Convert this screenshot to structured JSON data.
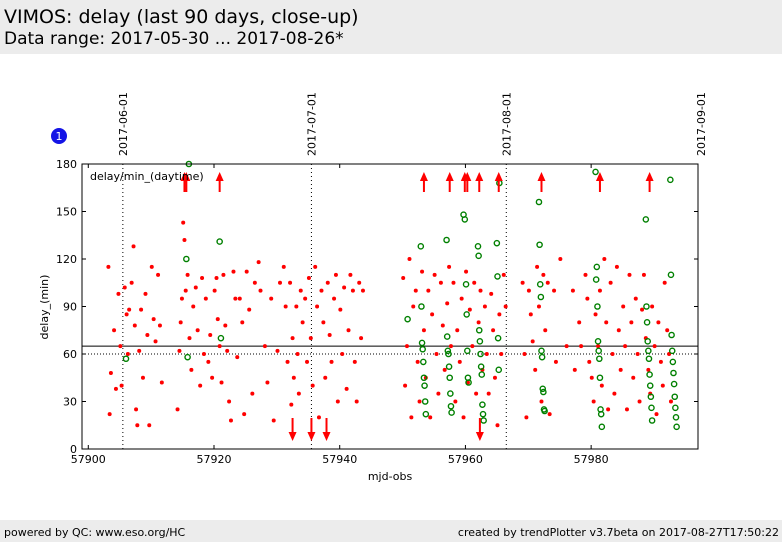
{
  "header": {
    "title": "VIMOS: delay (last 90 days, close-up)",
    "subtitle": "Data range: 2017-05-30 ... 2017-08-26*"
  },
  "footer": {
    "left": "powered by QC: www.eso.org/HC",
    "right": "created by trendPlotter v3.7beta on 2017-08-27T17:50:22"
  },
  "badge": {
    "label": "1",
    "color": "#1414e6"
  },
  "chart_data": {
    "type": "scatter",
    "xlabel": "mjd-obs",
    "ylabel": "delay_(min)",
    "annotation": "delay/min_(daytime)",
    "xlim": [
      57899,
      57997
    ],
    "ylim": [
      0,
      180
    ],
    "xticks": [
      57900,
      57920,
      57940,
      57960,
      57980
    ],
    "yticks": [
      0,
      30,
      60,
      90,
      120,
      150,
      180
    ],
    "hlines": [
      {
        "y": 60,
        "style": "dotted",
        "color": "#000000"
      },
      {
        "y": 65,
        "style": "solid",
        "color": "#000000"
      }
    ],
    "date_markers": [
      {
        "x": 57905.5,
        "label": "2017-06-01"
      },
      {
        "x": 57935.5,
        "label": "2017-07-01"
      },
      {
        "x": 57966.5,
        "label": "2017-08-01"
      },
      {
        "x": 57997.5,
        "label": "2017-09-01"
      }
    ],
    "colors": {
      "red": "#ff0000",
      "green": "#008000",
      "arrow": "#ff0000"
    },
    "red_points": [
      [
        57903.2,
        115
      ],
      [
        57903.4,
        22
      ],
      [
        57903.6,
        48
      ],
      [
        57904.1,
        75
      ],
      [
        57904.4,
        38
      ],
      [
        57904.8,
        98
      ],
      [
        57905.1,
        65
      ],
      [
        57905.3,
        40
      ],
      [
        57905.8,
        102
      ],
      [
        57906.1,
        85
      ],
      [
        57906.3,
        60
      ],
      [
        57906.5,
        88
      ],
      [
        57906.9,
        105
      ],
      [
        57907.2,
        128
      ],
      [
        57907.4,
        78
      ],
      [
        57907.6,
        25
      ],
      [
        57907.8,
        15
      ],
      [
        57908.1,
        62
      ],
      [
        57908.4,
        88
      ],
      [
        57908.7,
        45
      ],
      [
        57909.1,
        98
      ],
      [
        57909.4,
        72
      ],
      [
        57909.7,
        15
      ],
      [
        57910.1,
        115
      ],
      [
        57910.4,
        82
      ],
      [
        57910.7,
        68
      ],
      [
        57911.1,
        110
      ],
      [
        57911.4,
        78
      ],
      [
        57911.7,
        42
      ],
      [
        57914.2,
        25
      ],
      [
        57914.5,
        62
      ],
      [
        57914.7,
        80
      ],
      [
        57914.9,
        95
      ],
      [
        57915.1,
        143
      ],
      [
        57915.3,
        132
      ],
      [
        57915.5,
        100
      ],
      [
        57915.8,
        110
      ],
      [
        57916.1,
        70
      ],
      [
        57916.4,
        50
      ],
      [
        57916.7,
        90
      ],
      [
        57917.1,
        102
      ],
      [
        57917.4,
        75
      ],
      [
        57917.8,
        40
      ],
      [
        57918.1,
        108
      ],
      [
        57918.4,
        60
      ],
      [
        57918.7,
        95
      ],
      [
        57919.1,
        55
      ],
      [
        57919.4,
        72
      ],
      [
        57919.7,
        45
      ],
      [
        57920.1,
        100
      ],
      [
        57920.4,
        108
      ],
      [
        57920.6,
        82
      ],
      [
        57920.9,
        65
      ],
      [
        57921.2,
        42
      ],
      [
        57921.5,
        110
      ],
      [
        57921.8,
        78
      ],
      [
        57922.1,
        62
      ],
      [
        57922.4,
        30
      ],
      [
        57922.7,
        18
      ],
      [
        57923.1,
        112
      ],
      [
        57923.4,
        95
      ],
      [
        57923.7,
        58
      ],
      [
        57924.1,
        95
      ],
      [
        57924.5,
        80
      ],
      [
        57924.8,
        22
      ],
      [
        57925.2,
        112
      ],
      [
        57925.6,
        88
      ],
      [
        57926.1,
        35
      ],
      [
        57926.5,
        105
      ],
      [
        57927.1,
        118
      ],
      [
        57927.4,
        100
      ],
      [
        57928.1,
        65
      ],
      [
        57928.5,
        42
      ],
      [
        57929.1,
        95
      ],
      [
        57929.5,
        18
      ],
      [
        57930.1,
        62
      ],
      [
        57930.5,
        105
      ],
      [
        57931.1,
        115
      ],
      [
        57931.4,
        90
      ],
      [
        57931.7,
        55
      ],
      [
        57932.1,
        105
      ],
      [
        57932.3,
        28
      ],
      [
        57932.5,
        70
      ],
      [
        57932.7,
        45
      ],
      [
        57933.1,
        90
      ],
      [
        57933.3,
        60
      ],
      [
        57933.5,
        35
      ],
      [
        57933.8,
        100
      ],
      [
        57934.1,
        80
      ],
      [
        57934.5,
        95
      ],
      [
        57934.8,
        55
      ],
      [
        57935.1,
        108
      ],
      [
        57935.4,
        70
      ],
      [
        57935.7,
        40
      ],
      [
        57936.1,
        115
      ],
      [
        57936.4,
        90
      ],
      [
        57936.7,
        20
      ],
      [
        57937.1,
        100
      ],
      [
        57937.4,
        80
      ],
      [
        57937.7,
        45
      ],
      [
        57938.1,
        105
      ],
      [
        57938.4,
        72
      ],
      [
        57938.7,
        55
      ],
      [
        57939.1,
        95
      ],
      [
        57939.4,
        110
      ],
      [
        57939.7,
        30
      ],
      [
        57940.1,
        88
      ],
      [
        57940.4,
        60
      ],
      [
        57940.7,
        102
      ],
      [
        57941.1,
        38
      ],
      [
        57941.4,
        75
      ],
      [
        57941.7,
        110
      ],
      [
        57942.1,
        100
      ],
      [
        57942.4,
        55
      ],
      [
        57942.7,
        30
      ],
      [
        57943.1,
        105
      ],
      [
        57943.4,
        70
      ],
      [
        57943.7,
        100
      ],
      [
        57950.1,
        108
      ],
      [
        57950.4,
        40
      ],
      [
        57950.7,
        65
      ],
      [
        57951.1,
        120
      ],
      [
        57951.4,
        20
      ],
      [
        57951.7,
        90
      ],
      [
        57952.1,
        100
      ],
      [
        57952.4,
        55
      ],
      [
        57952.7,
        30
      ],
      [
        57953.1,
        112
      ],
      [
        57953.4,
        75
      ],
      [
        57953.7,
        45
      ],
      [
        57954.1,
        100
      ],
      [
        57954.4,
        20
      ],
      [
        57954.7,
        85
      ],
      [
        57955.1,
        110
      ],
      [
        57955.4,
        60
      ],
      [
        57955.7,
        35
      ],
      [
        57956.1,
        105
      ],
      [
        57956.4,
        78
      ],
      [
        57956.7,
        50
      ],
      [
        57957.1,
        92
      ],
      [
        57957.4,
        115
      ],
      [
        57957.7,
        65
      ],
      [
        57958.1,
        105
      ],
      [
        57958.4,
        30
      ],
      [
        57958.7,
        75
      ],
      [
        57959.1,
        55
      ],
      [
        57959.4,
        95
      ],
      [
        57959.7,
        20
      ],
      [
        57960.1,
        112
      ],
      [
        57960.4,
        42
      ],
      [
        57960.7,
        88
      ],
      [
        57961.1,
        65
      ],
      [
        57961.4,
        105
      ],
      [
        57961.7,
        35
      ],
      [
        57962.1,
        80
      ],
      [
        57962.4,
        100
      ],
      [
        57962.7,
        50
      ],
      [
        57963.1,
        90
      ],
      [
        57963.4,
        60
      ],
      [
        57963.7,
        35
      ],
      [
        57964.1,
        98
      ],
      [
        57964.4,
        75
      ],
      [
        57964.7,
        45
      ],
      [
        57965.1,
        15
      ],
      [
        57965.4,
        85
      ],
      [
        57965.7,
        60
      ],
      [
        57966.1,
        110
      ],
      [
        57966.4,
        90
      ],
      [
        57969.1,
        105
      ],
      [
        57969.4,
        60
      ],
      [
        57969.7,
        20
      ],
      [
        57970.1,
        100
      ],
      [
        57970.4,
        85
      ],
      [
        57970.7,
        68
      ],
      [
        57971.1,
        50
      ],
      [
        57971.4,
        115
      ],
      [
        57971.7,
        90
      ],
      [
        57972.1,
        30
      ],
      [
        57972.4,
        110
      ],
      [
        57972.7,
        75
      ],
      [
        57973.1,
        105
      ],
      [
        57973.4,
        22
      ],
      [
        57974.1,
        100
      ],
      [
        57974.4,
        55
      ],
      [
        57975.1,
        120
      ],
      [
        57976.1,
        65
      ],
      [
        57977.1,
        100
      ],
      [
        57977.4,
        50
      ],
      [
        57978.1,
        80
      ],
      [
        57978.4,
        65
      ],
      [
        57979.1,
        110
      ],
      [
        57979.4,
        95
      ],
      [
        57979.7,
        55
      ],
      [
        57980.1,
        45
      ],
      [
        57980.4,
        30
      ],
      [
        57980.7,
        85
      ],
      [
        57981.1,
        65
      ],
      [
        57981.4,
        100
      ],
      [
        57981.7,
        40
      ],
      [
        57982.1,
        120
      ],
      [
        57982.4,
        80
      ],
      [
        57982.7,
        25
      ],
      [
        57983.1,
        105
      ],
      [
        57983.4,
        60
      ],
      [
        57983.7,
        35
      ],
      [
        57984.1,
        115
      ],
      [
        57984.4,
        75
      ],
      [
        57984.7,
        50
      ],
      [
        57985.1,
        90
      ],
      [
        57985.4,
        65
      ],
      [
        57985.7,
        25
      ],
      [
        57986.1,
        110
      ],
      [
        57986.4,
        80
      ],
      [
        57986.7,
        45
      ],
      [
        57987.1,
        95
      ],
      [
        57987.4,
        60
      ],
      [
        57987.7,
        30
      ],
      [
        57988.1,
        88
      ],
      [
        57988.4,
        110
      ],
      [
        57988.7,
        70
      ],
      [
        57989.1,
        50
      ],
      [
        57989.4,
        35
      ],
      [
        57989.7,
        90
      ],
      [
        57990.1,
        65
      ],
      [
        57990.4,
        22
      ],
      [
        57990.7,
        80
      ],
      [
        57991.1,
        55
      ],
      [
        57991.4,
        40
      ],
      [
        57991.7,
        105
      ],
      [
        57992.1,
        75
      ],
      [
        57992.4,
        60
      ],
      [
        57992.7,
        30
      ]
    ],
    "green_points": [
      [
        57906.0,
        57
      ],
      [
        57915.6,
        120
      ],
      [
        57915.8,
        58
      ],
      [
        57916.0,
        180
      ],
      [
        57920.9,
        131
      ],
      [
        57921.1,
        70
      ],
      [
        57950.8,
        82
      ],
      [
        57952.9,
        128
      ],
      [
        57953.0,
        90
      ],
      [
        57953.1,
        67
      ],
      [
        57953.2,
        63
      ],
      [
        57953.3,
        55
      ],
      [
        57953.4,
        45
      ],
      [
        57953.5,
        40
      ],
      [
        57953.6,
        30
      ],
      [
        57953.7,
        22
      ],
      [
        57957.0,
        132
      ],
      [
        57957.1,
        71
      ],
      [
        57957.2,
        62
      ],
      [
        57957.3,
        60
      ],
      [
        57957.4,
        52
      ],
      [
        57957.5,
        45
      ],
      [
        57957.6,
        35
      ],
      [
        57957.7,
        27
      ],
      [
        57957.8,
        23
      ],
      [
        57959.7,
        148
      ],
      [
        57959.9,
        145
      ],
      [
        57960.1,
        104
      ],
      [
        57960.2,
        85
      ],
      [
        57960.3,
        62
      ],
      [
        57960.4,
        45
      ],
      [
        57960.5,
        42
      ],
      [
        57962.0,
        128
      ],
      [
        57962.1,
        122
      ],
      [
        57962.2,
        75
      ],
      [
        57962.3,
        68
      ],
      [
        57962.4,
        60
      ],
      [
        57962.5,
        52
      ],
      [
        57962.6,
        47
      ],
      [
        57962.7,
        28
      ],
      [
        57962.8,
        22
      ],
      [
        57962.9,
        18
      ],
      [
        57965.0,
        130
      ],
      [
        57965.1,
        109
      ],
      [
        57965.2,
        70
      ],
      [
        57965.3,
        50
      ],
      [
        57965.4,
        168
      ],
      [
        57971.7,
        156
      ],
      [
        57971.8,
        129
      ],
      [
        57971.9,
        104
      ],
      [
        57972.0,
        96
      ],
      [
        57972.1,
        62
      ],
      [
        57972.2,
        58
      ],
      [
        57972.3,
        38
      ],
      [
        57972.4,
        36
      ],
      [
        57972.5,
        25
      ],
      [
        57972.6,
        24
      ],
      [
        57980.7,
        175
      ],
      [
        57980.8,
        107
      ],
      [
        57980.9,
        115
      ],
      [
        57981.0,
        90
      ],
      [
        57981.1,
        68
      ],
      [
        57981.2,
        62
      ],
      [
        57981.3,
        57
      ],
      [
        57981.4,
        45
      ],
      [
        57981.5,
        25
      ],
      [
        57981.6,
        22
      ],
      [
        57981.7,
        14
      ],
      [
        57988.7,
        145
      ],
      [
        57988.8,
        90
      ],
      [
        57988.9,
        80
      ],
      [
        57989.0,
        68
      ],
      [
        57989.1,
        62
      ],
      [
        57989.2,
        57
      ],
      [
        57989.3,
        47
      ],
      [
        57989.4,
        40
      ],
      [
        57989.5,
        33
      ],
      [
        57989.6,
        26
      ],
      [
        57989.7,
        18
      ],
      [
        57992.6,
        170
      ],
      [
        57992.7,
        110
      ],
      [
        57992.8,
        72
      ],
      [
        57992.9,
        62
      ],
      [
        57993.0,
        55
      ],
      [
        57993.1,
        48
      ],
      [
        57993.2,
        41
      ],
      [
        57993.3,
        33
      ],
      [
        57993.4,
        26
      ],
      [
        57993.5,
        20
      ],
      [
        57993.6,
        14
      ]
    ],
    "up_arrows": [
      57915.3,
      57915.6,
      57920.9,
      57953.4,
      57957.5,
      57959.9,
      57960.3,
      57962.2,
      57965.3,
      57972.1,
      57981.4,
      57989.3
    ],
    "down_arrows": [
      57932.5,
      57935.5,
      57937.9,
      57962.3
    ]
  }
}
